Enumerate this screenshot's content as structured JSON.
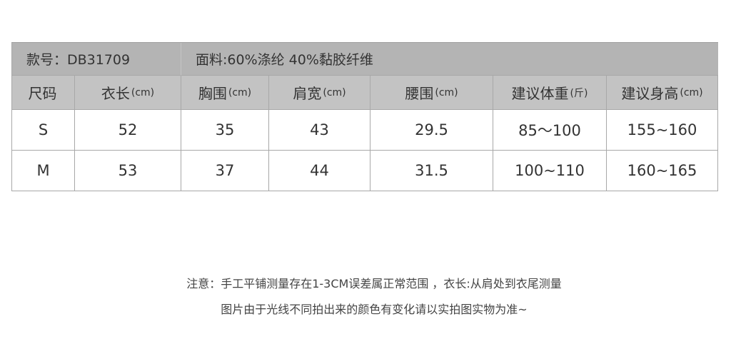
{
  "title_row": {
    "style_no": "款号：DB31709",
    "fabric": "面料:60%涤纶 40%黏胶纤维"
  },
  "headers": [
    {
      "label": "尺码",
      "unit": ""
    },
    {
      "label": "衣长",
      "unit": "(cm)"
    },
    {
      "label": "胸围",
      "unit": "(cm)"
    },
    {
      "label": "肩宽",
      "unit": "(cm)"
    },
    {
      "label": "腰围",
      "unit": "(cm)"
    },
    {
      "label": "建议体重",
      "unit": "(斤)"
    },
    {
      "label": "建议身高",
      "unit": "(cm)"
    }
  ],
  "rows": [
    [
      "S",
      "52",
      "35",
      "43",
      "29.5",
      "85～100",
      "155~160"
    ],
    [
      "M",
      "53",
      "37",
      "44",
      "31.5",
      "100~110",
      "160~165"
    ]
  ],
  "notes": {
    "line1": "注意：手工平铺测量存在1-3CM误差属正常范围 ，衣长:从肩处到衣尾测量",
    "line2": "图片由于光线不同拍出来的颜色有变化请以实拍图实物为准~"
  }
}
